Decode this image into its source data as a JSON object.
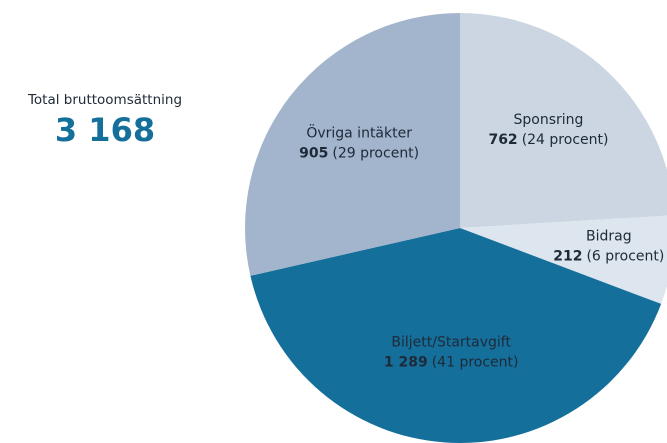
{
  "chart_data": {
    "type": "pie",
    "total_title": "Total bruttoomsättning",
    "total": {
      "value": 3168,
      "label": "3 168"
    },
    "categories": [
      "Sponsring",
      "Bidrag",
      "Biljett/Startavgift",
      "Övriga intäkter"
    ],
    "values": [
      762,
      212,
      1289,
      905
    ],
    "value_labels": [
      "762",
      "212",
      "1 289",
      "905"
    ],
    "percent_labels": [
      "(24 procent)",
      "(6 procent)",
      "(41 procent)",
      "(29 procent)"
    ],
    "colors": [
      "#ccd6e2",
      "#dde5ee",
      "#156f9b",
      "#a3b5cc"
    ]
  }
}
